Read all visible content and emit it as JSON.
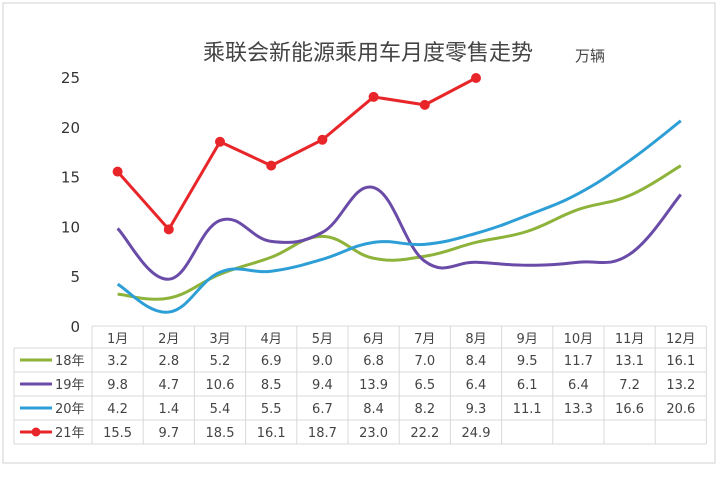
{
  "chart_data": {
    "type": "line",
    "title": "乘联会新能源乘用车月度零售走势",
    "unit": "万辆",
    "categories": [
      "1月",
      "2月",
      "3月",
      "4月",
      "5月",
      "6月",
      "7月",
      "8月",
      "9月",
      "10月",
      "11月",
      "12月"
    ],
    "ylim": [
      0,
      25
    ],
    "yticks": [
      "0",
      "5",
      "10",
      "15",
      "20",
      "25"
    ],
    "grid": false,
    "legend": "table-left",
    "series": [
      {
        "name": "18年",
        "color": "#8db33a",
        "marker": false,
        "values": [
          3.2,
          2.8,
          5.2,
          6.9,
          9.0,
          6.8,
          7.0,
          8.4,
          9.5,
          11.7,
          13.1,
          16.1
        ]
      },
      {
        "name": "19年",
        "color": "#6a4ba8",
        "marker": false,
        "values": [
          9.8,
          4.7,
          10.6,
          8.5,
          9.4,
          13.9,
          6.5,
          6.4,
          6.1,
          6.4,
          7.2,
          13.2
        ]
      },
      {
        "name": "20年",
        "color": "#2e9fd6",
        "marker": false,
        "values": [
          4.2,
          1.4,
          5.4,
          5.5,
          6.7,
          8.4,
          8.2,
          9.3,
          11.1,
          13.3,
          16.6,
          20.6
        ]
      },
      {
        "name": "21年",
        "color": "#e8262a",
        "marker": true,
        "values": [
          15.5,
          9.7,
          18.5,
          16.1,
          18.7,
          23.0,
          22.2,
          24.9,
          null,
          null,
          null,
          null
        ]
      }
    ],
    "table_text": [
      [
        "3.2",
        "2.8",
        "5.2",
        "6.9",
        "9.0",
        "6.8",
        "7.0",
        "8.4",
        "9.5",
        "11.7",
        "13.1",
        "16.1"
      ],
      [
        "9.8",
        "4.7",
        "10.6",
        "8.5",
        "9.4",
        "13.9",
        "6.5",
        "6.4",
        "6.1",
        "6.4",
        "7.2",
        "13.2"
      ],
      [
        "4.2",
        "1.4",
        "5.4",
        "5.5",
        "6.7",
        "8.4",
        "8.2",
        "9.3",
        "11.1",
        "13.3",
        "16.6",
        "20.6"
      ],
      [
        "15.5",
        "9.7",
        "18.5",
        "16.1",
        "18.7",
        "23.0",
        "22.2",
        "24.9",
        "",
        "",
        "",
        ""
      ]
    ]
  }
}
